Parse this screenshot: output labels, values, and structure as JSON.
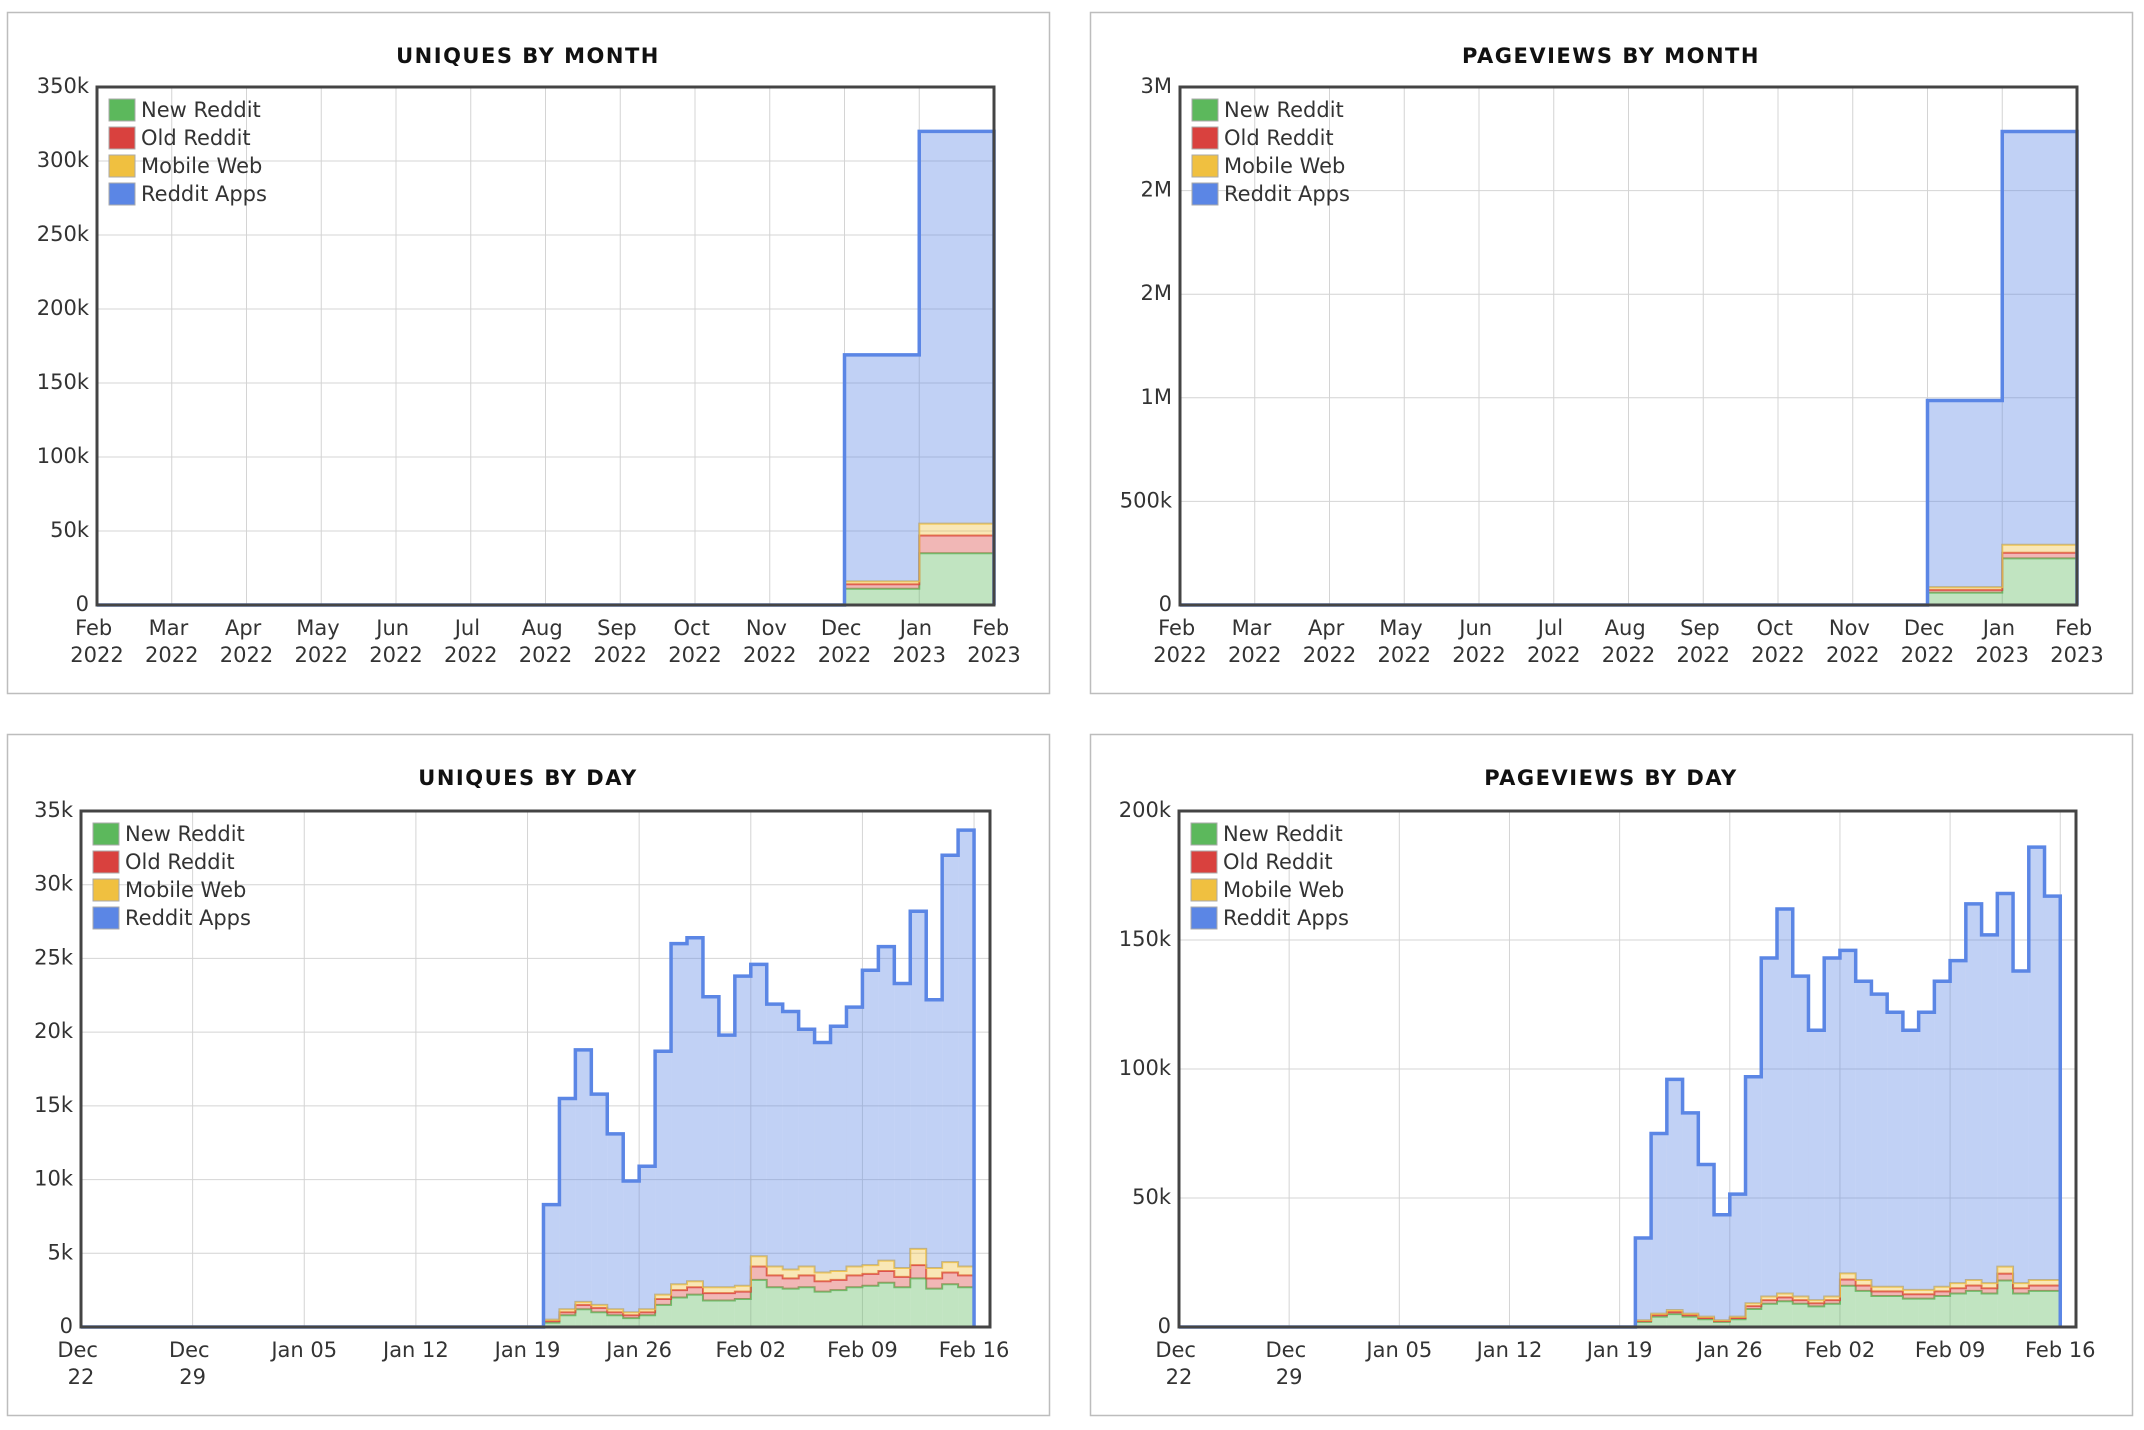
{
  "chart_data": [
    {
      "type": "step-area",
      "title": "UNIQUES BY MONTH",
      "legend": "upper left",
      "grid": true,
      "x": [
        0,
        1,
        2,
        3,
        4,
        5,
        6,
        7,
        8,
        9,
        10,
        11
      ],
      "xlim": [
        0,
        12
      ],
      "xticks": [
        {
          "value": 0,
          "label": "Feb 2022"
        },
        {
          "value": 1,
          "label": "Mar 2022"
        },
        {
          "value": 2,
          "label": "Apr 2022"
        },
        {
          "value": 3,
          "label": "May 2022"
        },
        {
          "value": 4,
          "label": "Jun 2022"
        },
        {
          "value": 5,
          "label": "Jul 2022"
        },
        {
          "value": 6,
          "label": "Aug 2022"
        },
        {
          "value": 7,
          "label": "Sep 2022"
        },
        {
          "value": 8,
          "label": "Oct 2022"
        },
        {
          "value": 9,
          "label": "Nov 2022"
        },
        {
          "value": 10,
          "label": "Dec 2022"
        },
        {
          "value": 11,
          "label": "Jan 2023"
        },
        {
          "value": 12,
          "label": "Feb 2023"
        }
      ],
      "ylim": [
        0,
        350000
      ],
      "yticks": [
        0,
        {
          "value": 50000,
          "label": "50k"
        },
        {
          "value": 100000,
          "label": "100k"
        },
        {
          "value": 150000,
          "label": "150k"
        },
        {
          "value": 200000,
          "label": "200k"
        },
        {
          "value": 250000,
          "label": "250k"
        },
        {
          "value": 300000,
          "label": "300k"
        },
        {
          "value": 350000,
          "label": "350k"
        }
      ],
      "series": [
        {
          "name": "New Reddit",
          "color": "#5cb85c",
          "values": [
            0,
            0,
            0,
            0,
            0,
            0,
            0,
            0,
            0,
            0,
            11000,
            35000
          ]
        },
        {
          "name": "Old Reddit",
          "color": "#d9413e",
          "values": [
            0,
            0,
            0,
            0,
            0,
            0,
            0,
            0,
            0,
            0,
            3000,
            12000
          ]
        },
        {
          "name": "Mobile Web",
          "color": "#f0c040",
          "values": [
            0,
            0,
            0,
            0,
            0,
            0,
            0,
            0,
            0,
            0,
            2000,
            8000
          ]
        },
        {
          "name": "Reddit Apps",
          "color": "#5b86e5",
          "values": [
            0,
            0,
            0,
            0,
            0,
            0,
            0,
            0,
            0,
            0,
            153000,
            265000
          ]
        }
      ]
    },
    {
      "type": "step-area",
      "title": "PAGEVIEWS BY MONTH",
      "legend": "upper left",
      "grid": true,
      "x": [
        0,
        1,
        2,
        3,
        4,
        5,
        6,
        7,
        8,
        9,
        10,
        11
      ],
      "xlim": [
        0,
        12
      ],
      "xticks": [
        {
          "value": 0,
          "label": "Feb 2022"
        },
        {
          "value": 1,
          "label": "Mar 2022"
        },
        {
          "value": 2,
          "label": "Apr 2022"
        },
        {
          "value": 3,
          "label": "May 2022"
        },
        {
          "value": 4,
          "label": "Jun 2022"
        },
        {
          "value": 5,
          "label": "Jul 2022"
        },
        {
          "value": 6,
          "label": "Aug 2022"
        },
        {
          "value": 7,
          "label": "Sep 2022"
        },
        {
          "value": 8,
          "label": "Oct 2022"
        },
        {
          "value": 9,
          "label": "Nov 2022"
        },
        {
          "value": 10,
          "label": "Dec 2022"
        },
        {
          "value": 11,
          "label": "Jan 2023"
        },
        {
          "value": 12,
          "label": "Feb 2023"
        }
      ],
      "ylim": [
        0,
        2500000
      ],
      "yticks": [
        0,
        {
          "value": 500000,
          "label": "500k"
        },
        {
          "value": 1000000,
          "label": "1M"
        },
        {
          "value": 1500000,
          "label": "2M"
        },
        {
          "value": 2000000,
          "label": "2M"
        },
        {
          "value": 2500000,
          "label": "3M"
        }
      ],
      "series": [
        {
          "name": "New Reddit",
          "color": "#5cb85c",
          "values": [
            0,
            0,
            0,
            0,
            0,
            0,
            0,
            0,
            0,
            0,
            60000,
            225000
          ]
        },
        {
          "name": "Old Reddit",
          "color": "#d9413e",
          "values": [
            0,
            0,
            0,
            0,
            0,
            0,
            0,
            0,
            0,
            0,
            13000,
            27000
          ]
        },
        {
          "name": "Mobile Web",
          "color": "#f0c040",
          "values": [
            0,
            0,
            0,
            0,
            0,
            0,
            0,
            0,
            0,
            0,
            13000,
            39000
          ]
        },
        {
          "name": "Reddit Apps",
          "color": "#5b86e5",
          "values": [
            0,
            0,
            0,
            0,
            0,
            0,
            0,
            0,
            0,
            0,
            901000,
            1994000
          ]
        }
      ]
    },
    {
      "type": "step-area",
      "title": "UNIQUES BY DAY",
      "legend": "upper left",
      "grid": true,
      "x": [
        0,
        1,
        2,
        3,
        4,
        5,
        6,
        7,
        8,
        9,
        10,
        11,
        12,
        13,
        14,
        15,
        16,
        17,
        18,
        19,
        20,
        21,
        22,
        23,
        24,
        25,
        26,
        27,
        28,
        29,
        30,
        31,
        32,
        33,
        34,
        35,
        36,
        37,
        38,
        39,
        40,
        41,
        42,
        43,
        44,
        45,
        46,
        47,
        48,
        49,
        50,
        51,
        52,
        53,
        54,
        55
      ],
      "xlim": [
        0,
        57
      ],
      "xticks": [
        {
          "value": 0,
          "label": "Dec 22"
        },
        {
          "value": 7,
          "label": "Dec 29"
        },
        {
          "value": 14,
          "label": "Jan 05"
        },
        {
          "value": 21,
          "label": "Jan 12"
        },
        {
          "value": 28,
          "label": "Jan 19"
        },
        {
          "value": 35,
          "label": "Jan 26"
        },
        {
          "value": 42,
          "label": "Feb 02"
        },
        {
          "value": 49,
          "label": "Feb 09"
        },
        {
          "value": 56,
          "label": "Feb 16"
        }
      ],
      "ylim": [
        0,
        35000
      ],
      "yticks": [
        0,
        {
          "value": 5000,
          "label": "5k"
        },
        {
          "value": 10000,
          "label": "10k"
        },
        {
          "value": 15000,
          "label": "15k"
        },
        {
          "value": 20000,
          "label": "20k"
        },
        {
          "value": 25000,
          "label": "25k"
        },
        {
          "value": 30000,
          "label": "30k"
        },
        {
          "value": 35000,
          "label": "35k"
        }
      ],
      "series": [
        {
          "name": "New Reddit",
          "color": "#5cb85c",
          "values": [
            0,
            0,
            0,
            0,
            0,
            0,
            0,
            0,
            0,
            0,
            0,
            0,
            0,
            0,
            0,
            0,
            0,
            0,
            0,
            0,
            0,
            0,
            0,
            0,
            0,
            0,
            0,
            0,
            0,
            300,
            800,
            1200,
            1000,
            800,
            600,
            800,
            1500,
            2000,
            2200,
            1800,
            1800,
            1900,
            3200,
            2700,
            2600,
            2700,
            2400,
            2500,
            2700,
            2800,
            3000,
            2700,
            3300,
            2600,
            2900,
            2700
          ]
        },
        {
          "name": "Old Reddit",
          "color": "#d9413e",
          "values": [
            0,
            0,
            0,
            0,
            0,
            0,
            0,
            0,
            0,
            0,
            0,
            0,
            0,
            0,
            0,
            0,
            0,
            0,
            0,
            0,
            0,
            0,
            0,
            0,
            0,
            0,
            0,
            0,
            0,
            100,
            200,
            300,
            300,
            200,
            200,
            200,
            400,
            500,
            500,
            500,
            500,
            500,
            900,
            800,
            700,
            800,
            700,
            700,
            800,
            800,
            800,
            700,
            900,
            700,
            800,
            800
          ]
        },
        {
          "name": "Mobile Web",
          "color": "#f0c040",
          "values": [
            0,
            0,
            0,
            0,
            0,
            0,
            0,
            0,
            0,
            0,
            0,
            0,
            0,
            0,
            0,
            0,
            0,
            0,
            0,
            0,
            0,
            0,
            0,
            0,
            0,
            0,
            0,
            0,
            0,
            100,
            200,
            200,
            200,
            200,
            200,
            200,
            300,
            400,
            400,
            400,
            400,
            400,
            700,
            600,
            600,
            600,
            600,
            600,
            600,
            600,
            700,
            600,
            1100,
            700,
            700,
            600
          ]
        },
        {
          "name": "Reddit Apps",
          "color": "#5b86e5",
          "values": [
            0,
            0,
            0,
            0,
            0,
            0,
            0,
            0,
            0,
            0,
            0,
            0,
            0,
            0,
            0,
            0,
            0,
            0,
            0,
            0,
            0,
            0,
            0,
            0,
            0,
            0,
            0,
            0,
            0,
            7800,
            14300,
            17100,
            14300,
            11900,
            8900,
            9700,
            16500,
            23100,
            23300,
            19700,
            17100,
            21000,
            19800,
            17800,
            17500,
            16100,
            15600,
            16600,
            17600,
            20000,
            21300,
            19300,
            22900,
            18200,
            27600,
            29600
          ]
        }
      ]
    },
    {
      "type": "step-area",
      "title": "PAGEVIEWS BY DAY",
      "legend": "upper left",
      "grid": true,
      "x": [
        0,
        1,
        2,
        3,
        4,
        5,
        6,
        7,
        8,
        9,
        10,
        11,
        12,
        13,
        14,
        15,
        16,
        17,
        18,
        19,
        20,
        21,
        22,
        23,
        24,
        25,
        26,
        27,
        28,
        29,
        30,
        31,
        32,
        33,
        34,
        35,
        36,
        37,
        38,
        39,
        40,
        41,
        42,
        43,
        44,
        45,
        46,
        47,
        48,
        49,
        50,
        51,
        52,
        53,
        54,
        55
      ],
      "xlim": [
        0,
        57
      ],
      "xticks": [
        {
          "value": 0,
          "label": "Dec 22"
        },
        {
          "value": 7,
          "label": "Dec 29"
        },
        {
          "value": 14,
          "label": "Jan 05"
        },
        {
          "value": 21,
          "label": "Jan 12"
        },
        {
          "value": 28,
          "label": "Jan 19"
        },
        {
          "value": 35,
          "label": "Jan 26"
        },
        {
          "value": 42,
          "label": "Feb 02"
        },
        {
          "value": 49,
          "label": "Feb 09"
        },
        {
          "value": 56,
          "label": "Feb 16"
        }
      ],
      "ylim": [
        0,
        200000
      ],
      "yticks": [
        0,
        {
          "value": 50000,
          "label": "50k"
        },
        {
          "value": 100000,
          "label": "100k"
        },
        {
          "value": 150000,
          "label": "150k"
        },
        {
          "value": 200000,
          "label": "200k"
        }
      ],
      "series": [
        {
          "name": "New Reddit",
          "color": "#5cb85c",
          "values": [
            0,
            0,
            0,
            0,
            0,
            0,
            0,
            0,
            0,
            0,
            0,
            0,
            0,
            0,
            0,
            0,
            0,
            0,
            0,
            0,
            0,
            0,
            0,
            0,
            0,
            0,
            0,
            0,
            0,
            2000,
            4000,
            5000,
            4000,
            3000,
            2000,
            3000,
            7000,
            9000,
            10000,
            9000,
            8000,
            9000,
            16000,
            14000,
            12000,
            12000,
            11000,
            11000,
            12000,
            13000,
            14000,
            13000,
            18000,
            13000,
            14000,
            14000
          ]
        },
        {
          "name": "Old Reddit",
          "color": "#d9413e",
          "values": [
            0,
            0,
            0,
            0,
            0,
            0,
            0,
            0,
            0,
            0,
            0,
            0,
            0,
            0,
            0,
            0,
            0,
            0,
            0,
            0,
            0,
            0,
            0,
            0,
            0,
            0,
            0,
            0,
            0,
            300,
            600,
            800,
            600,
            500,
            300,
            500,
            1100,
            1400,
            1500,
            1400,
            1200,
            1400,
            2400,
            2100,
            1800,
            1800,
            1700,
            1700,
            1800,
            2000,
            2100,
            2000,
            2700,
            2000,
            2100,
            2100
          ]
        },
        {
          "name": "Mobile Web",
          "color": "#f0c040",
          "values": [
            0,
            0,
            0,
            0,
            0,
            0,
            0,
            0,
            0,
            0,
            0,
            0,
            0,
            0,
            0,
            0,
            0,
            0,
            0,
            0,
            0,
            0,
            0,
            0,
            0,
            0,
            0,
            0,
            0,
            300,
            600,
            800,
            600,
            500,
            300,
            500,
            1100,
            1400,
            1500,
            1400,
            1200,
            1400,
            2400,
            2100,
            1800,
            1800,
            1700,
            1700,
            1800,
            2000,
            2100,
            2000,
            2700,
            2000,
            2100,
            2100
          ]
        },
        {
          "name": "Reddit Apps",
          "color": "#5b86e5",
          "values": [
            0,
            0,
            0,
            0,
            0,
            0,
            0,
            0,
            0,
            0,
            0,
            0,
            0,
            0,
            0,
            0,
            0,
            0,
            0,
            0,
            0,
            0,
            0,
            0,
            0,
            0,
            0,
            0,
            0,
            31900,
            69800,
            89400,
            77800,
            59000,
            40900,
            47500,
            87800,
            131200,
            149000,
            124200,
            104600,
            131200,
            125200,
            115800,
            113400,
            106400,
            100600,
            107600,
            118400,
            125000,
            145800,
            135000,
            144600,
            121000,
            167800,
            148800
          ]
        }
      ]
    }
  ]
}
